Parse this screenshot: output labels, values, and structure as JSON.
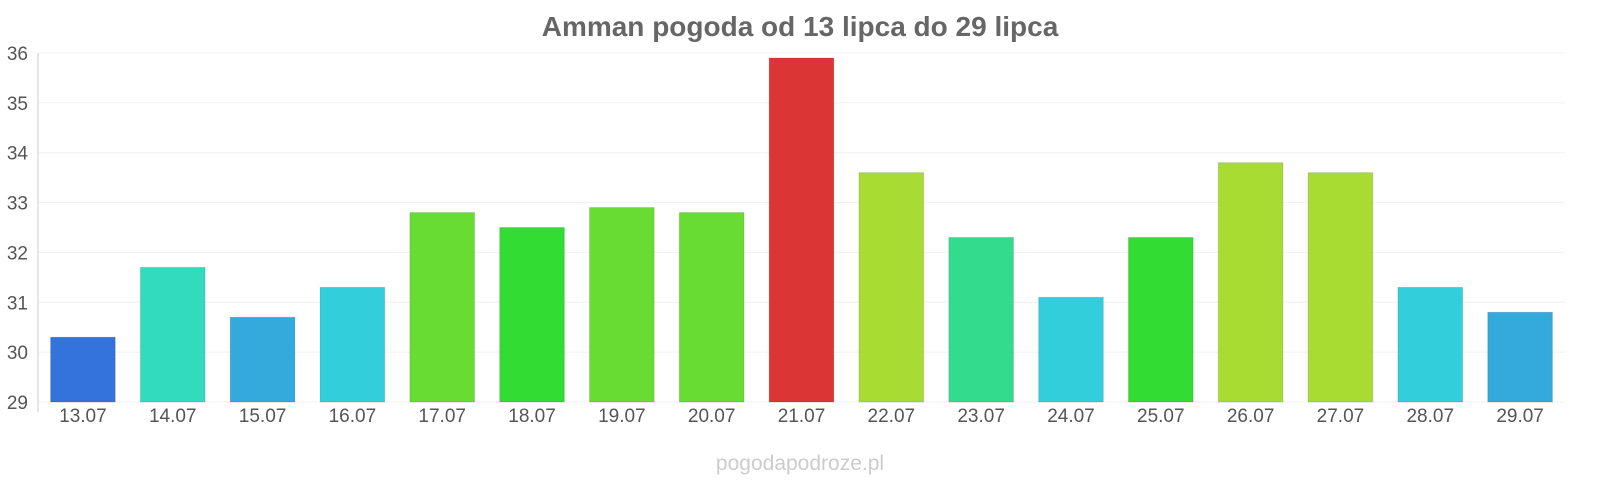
{
  "chart_data": {
    "type": "bar",
    "title": "Amman pogoda od 13 lipca do 29 lipca",
    "xlabel": "",
    "ylabel": "",
    "ylim": [
      29,
      36
    ],
    "yticks": [
      "29",
      "30",
      "31",
      "32",
      "33",
      "34",
      "35",
      "36"
    ],
    "grid": true,
    "legend": "none",
    "categories": [
      "13.07",
      "14.07",
      "15.07",
      "16.07",
      "17.07",
      "18.07",
      "19.07",
      "20.07",
      "21.07",
      "22.07",
      "23.07",
      "24.07",
      "25.07",
      "26.07",
      "27.07",
      "28.07",
      "29.07"
    ],
    "values": [
      30.3,
      31.7,
      30.7,
      31.3,
      32.8,
      32.5,
      32.9,
      32.8,
      35.9,
      33.6,
      32.3,
      31.1,
      32.3,
      33.8,
      33.6,
      31.3,
      30.8
    ],
    "colors": [
      "#3273dc",
      "#33dbbd",
      "#33a9dc",
      "#33cedc",
      "#69dc33",
      "#33dc33",
      "#69dc33",
      "#69dc33",
      "#dc3535",
      "#a9dc33",
      "#33dc8c",
      "#33cedc",
      "#33dc33",
      "#a9dc33",
      "#a9dc33",
      "#33cedc",
      "#33a9dc"
    ]
  },
  "watermark": "pogodapodroze.pl"
}
